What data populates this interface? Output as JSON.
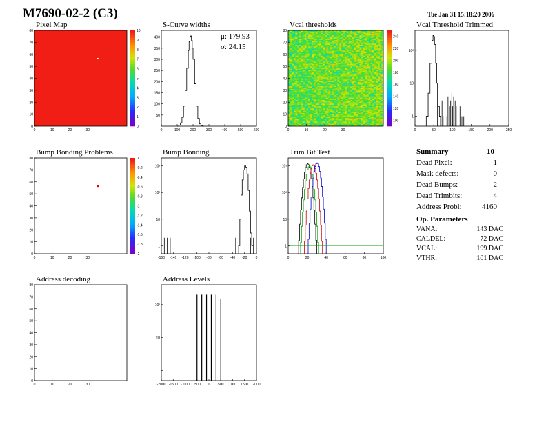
{
  "page": {
    "title": "M7690-02-2 (C3)",
    "date": "Tue Jan 31 15:18:20 2006"
  },
  "panels": {
    "pixel_map": "Pixel Map",
    "scurve": "S-Curve widths",
    "vcal_thr": "Vcal thresholds",
    "vcal_trim": "Vcal Threshold Trimmed",
    "bump_problems": "Bump Bonding Problems",
    "bump": "Bump Bonding",
    "trimbit": "Trim Bit Test",
    "addr_dec": "Address decoding",
    "addr_lev": "Address Levels"
  },
  "scurve_stats": {
    "mu": "μ: 179.93",
    "sigma": "σ:  24.15"
  },
  "summary": {
    "header": "Summary",
    "header_value": "10",
    "rows": [
      {
        "label": "Dead Pixel:",
        "value": "1"
      },
      {
        "label": "Mask defects:",
        "value": "0"
      },
      {
        "label": "Dead Bumps:",
        "value": "2"
      },
      {
        "label": "Dead Trimbits:",
        "value": "4"
      },
      {
        "label": "Address Probl:",
        "value": "4160"
      }
    ],
    "op_header": "Op. Parameters",
    "op_rows": [
      {
        "label": "VANA:",
        "value": "143 DAC"
      },
      {
        "label": "CALDEL:",
        "value": "72 DAC"
      },
      {
        "label": "VCAL:",
        "value": "199 DAC"
      },
      {
        "label": "VTHR:",
        "value": "101 DAC"
      }
    ]
  },
  "chart_data": [
    {
      "id": "pixel_map",
      "type": "heatmap",
      "title": "Pixel Map",
      "xticks": [
        "0",
        "10",
        "20",
        "30"
      ],
      "yticks": [
        "0",
        "10",
        "20",
        "30",
        "40",
        "50",
        "60",
        "70",
        "80"
      ],
      "zticks": [
        "0",
        "1",
        "2",
        "3",
        "4",
        "5",
        "6",
        "7",
        "8",
        "9",
        "10"
      ],
      "xlim": [
        0,
        52
      ],
      "ylim": [
        0,
        80
      ],
      "zlim": [
        0,
        10
      ],
      "fill_value": 10,
      "dead_pixels": [
        {
          "x": 35,
          "y": 56,
          "value": 0
        }
      ]
    },
    {
      "id": "scurve",
      "type": "line",
      "title": "S-Curve widths",
      "xticks": [
        "0",
        "100",
        "200",
        "300",
        "400",
        "500",
        "600"
      ],
      "yticks": [
        "50",
        "100",
        "150",
        "200",
        "250",
        "300",
        "350",
        "400"
      ],
      "xlim": [
        0,
        600
      ],
      "ylim": [
        0,
        430
      ],
      "x": [
        100,
        110,
        120,
        130,
        140,
        150,
        160,
        170,
        175,
        180,
        185,
        190,
        195,
        200,
        210,
        220,
        230,
        240,
        250,
        260
      ],
      "y": [
        0,
        5,
        15,
        40,
        90,
        160,
        260,
        340,
        380,
        400,
        405,
        385,
        350,
        300,
        190,
        90,
        35,
        10,
        3,
        0
      ]
    },
    {
      "id": "vcal_thr",
      "type": "heatmap",
      "title": "Vcal thresholds",
      "xticks": [
        "0",
        "10",
        "20",
        "30"
      ],
      "yticks": [
        "0",
        "10",
        "20",
        "30",
        "40",
        "50",
        "60",
        "70",
        "80"
      ],
      "zticks": [
        "100",
        "120",
        "140",
        "160",
        "180",
        "200",
        "220",
        "240"
      ],
      "xlim": [
        0,
        52
      ],
      "ylim": [
        0,
        80
      ],
      "zlim": [
        90,
        250
      ],
      "mean": 195,
      "spread": 20
    },
    {
      "id": "vcal_trim",
      "type": "line",
      "title": "Vcal Threshold Trimmed",
      "log_y": true,
      "xticks": [
        "0",
        "50",
        "100",
        "150",
        "200",
        "250"
      ],
      "yticks": [
        "1",
        "10",
        "10²"
      ],
      "xlim": [
        0,
        250
      ],
      "ylim": [
        0.5,
        400
      ],
      "x": [
        30,
        35,
        40,
        45,
        48,
        50,
        52,
        55,
        58,
        60,
        65
      ],
      "y": [
        1,
        5,
        40,
        200,
        280,
        260,
        150,
        40,
        10,
        2,
        1
      ],
      "tail_x": [
        60,
        68,
        72,
        75,
        80,
        85,
        88,
        92,
        95,
        98,
        100,
        103,
        107,
        110,
        115,
        120,
        125,
        130
      ],
      "tail_y": [
        2,
        1,
        3,
        1,
        2,
        1,
        4,
        2,
        3,
        5,
        2,
        4,
        3,
        2,
        1,
        2,
        1,
        1
      ]
    },
    {
      "id": "bump_problems",
      "type": "heatmap",
      "title": "Bump Bonding Problems",
      "xticks": [
        "0",
        "10",
        "20",
        "30"
      ],
      "yticks": [
        "0",
        "10",
        "20",
        "30",
        "40",
        "50",
        "60",
        "70",
        "80"
      ],
      "zticks": [
        "0",
        "-0.2",
        "-0.4",
        "-0.6",
        "-0.8",
        "-1",
        "-1.2",
        "-1.4",
        "-1.6",
        "-1.8",
        "-2"
      ],
      "xlim": [
        0,
        52
      ],
      "ylim": [
        0,
        80
      ],
      "zlim": [
        -2,
        0
      ],
      "dead_pixels": [
        {
          "x": 35,
          "y": 56,
          "value": 0
        }
      ]
    },
    {
      "id": "bump",
      "type": "line",
      "title": "Bump Bonding",
      "log_y": true,
      "xticks": [
        "-160",
        "-140",
        "-120",
        "-100",
        "-80",
        "-60",
        "-40",
        "-20",
        "0"
      ],
      "yticks": [
        "1",
        "10",
        "10²",
        "10³"
      ],
      "xlim": [
        -160,
        0
      ],
      "ylim": [
        0.5,
        2000
      ],
      "x": [
        -30,
        -28,
        -26,
        -24,
        -22,
        -20,
        -18,
        -16,
        -14,
        -12,
        -10,
        -8
      ],
      "y": [
        1,
        10,
        80,
        300,
        700,
        1000,
        900,
        500,
        120,
        20,
        3,
        1
      ],
      "outliers_x": [
        -155,
        -150,
        -145,
        -35,
        -10,
        -5
      ],
      "outliers_y": [
        1,
        1,
        1,
        1,
        1,
        1
      ]
    },
    {
      "id": "trimbit",
      "type": "line",
      "title": "Trim Bit Test",
      "log_y": true,
      "xticks": [
        "0",
        "20",
        "40",
        "60",
        "80",
        "100"
      ],
      "yticks": [
        "1",
        "10",
        "10²",
        "10³"
      ],
      "xlim": [
        0,
        100
      ],
      "ylim": [
        0.5,
        2000
      ],
      "series": [
        {
          "color": "#000000",
          "center": 20,
          "peak": 1200
        },
        {
          "color": "#00a000",
          "center": 22,
          "peak": 1000
        },
        {
          "color": "#cc0000",
          "center": 26,
          "peak": 1100
        },
        {
          "color": "#0000cc",
          "center": 30,
          "peak": 1300
        }
      ]
    },
    {
      "id": "addr_dec",
      "type": "heatmap",
      "title": "Address decoding",
      "xticks": [
        "0",
        "10",
        "20",
        "30"
      ],
      "yticks": [
        "0",
        "10",
        "20",
        "30",
        "40",
        "50",
        "60",
        "70",
        "80"
      ],
      "xlim": [
        0,
        52
      ],
      "ylim": [
        0,
        80
      ]
    },
    {
      "id": "addr_lev",
      "type": "bar",
      "title": "Address Levels",
      "log_y": true,
      "xticks": [
        "-2000",
        "-1500",
        "-1000",
        "-500",
        "0",
        "500",
        "1000",
        "1500",
        "2000"
      ],
      "yticks": [
        "1",
        "10",
        "10²"
      ],
      "xlim": [
        -2000,
        2000
      ],
      "ylim": [
        0.5,
        400
      ],
      "x": [
        -500,
        -300,
        -100,
        100,
        300,
        500
      ],
      "values": [
        200,
        200,
        200,
        200,
        200,
        150
      ]
    }
  ]
}
